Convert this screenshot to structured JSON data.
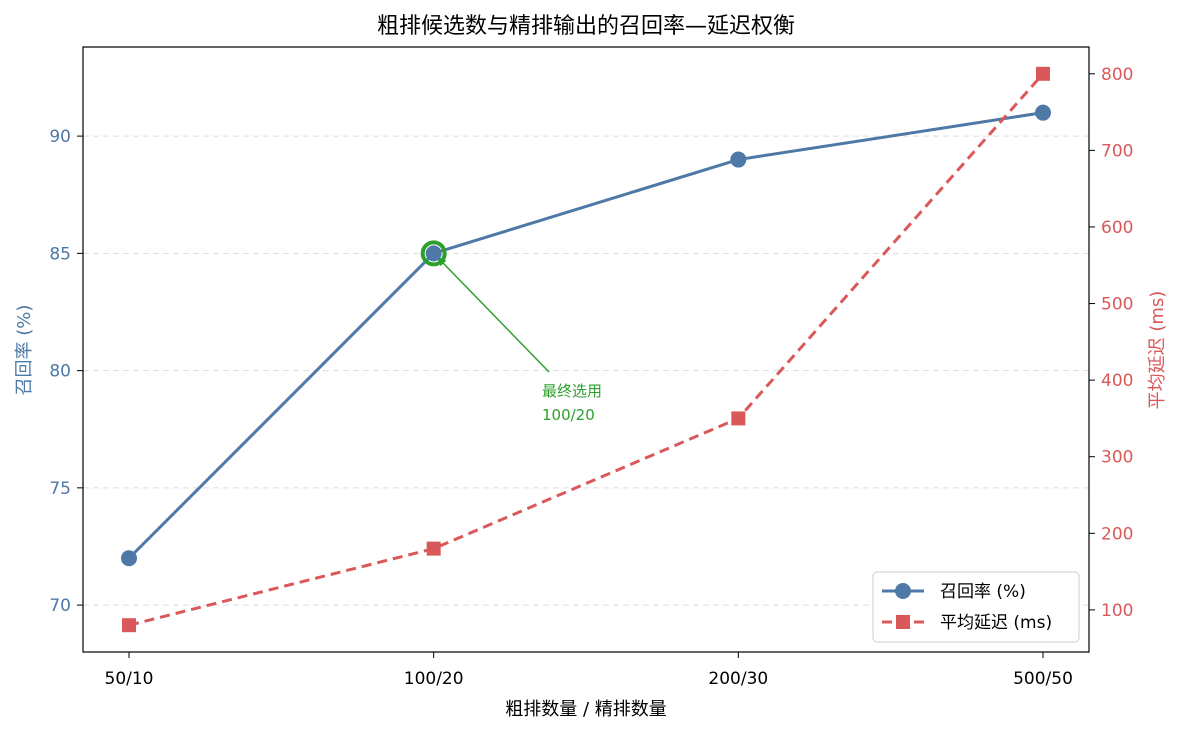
{
  "chart_data": {
    "type": "line",
    "title": "粗排候选数与精排输出的召回率—延迟权衡",
    "xlabel": "粗排数量 / 精排数量",
    "categories": [
      "50/10",
      "100/20",
      "200/30",
      "500/50"
    ],
    "y_left": {
      "label": "召回率 (%)",
      "lim": [
        68.0,
        93.8
      ],
      "ticks": [
        "70",
        "75",
        "80",
        "85",
        "90"
      ],
      "color": "#4e79a7"
    },
    "y_right": {
      "label": "平均延迟 (ms)",
      "lim": [
        45,
        835
      ],
      "ticks": [
        "100",
        "200",
        "300",
        "400",
        "500",
        "600",
        "700",
        "800"
      ],
      "color": "#d9595a"
    },
    "series": [
      {
        "name": "召回率 (%)",
        "axis": "left",
        "values": [
          72,
          85,
          89,
          91
        ],
        "color": "#4e79a7",
        "marker": "circle",
        "line": "solid"
      },
      {
        "name": "平均延迟 (ms)",
        "axis": "right",
        "values": [
          80,
          180,
          350,
          800
        ],
        "color": "#d9595a",
        "marker": "square",
        "line": "dashed"
      }
    ],
    "annotation": {
      "text_line1": "最终选用",
      "text_line2": "100/20",
      "target_category": "100/20",
      "target_value": 85,
      "color": "#2ca02c"
    },
    "grid": "horizontal-dashed",
    "legend_position": "bottom-right"
  }
}
